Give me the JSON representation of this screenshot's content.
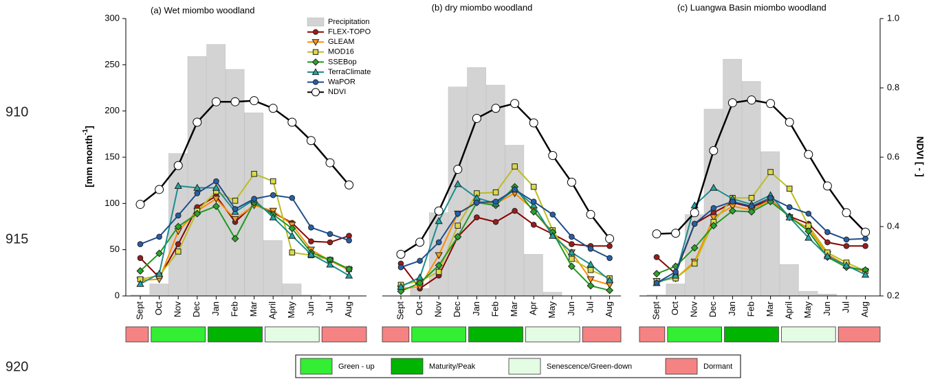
{
  "line_numbers": [
    910,
    915,
    920
  ],
  "phase_legend": [
    {
      "label": "Green - up",
      "color": "#33ee33"
    },
    {
      "label": "Maturity/Peak",
      "color": "#00b400"
    },
    {
      "label": "Senescence/Green-down",
      "color": "#e4fbe4"
    },
    {
      "label": "Dormant",
      "color": "#f58383"
    }
  ],
  "chart_data": [
    {
      "type": "combo",
      "title": "(a) Wet miombo woodland",
      "categories": [
        "Sept",
        "Oct",
        "Nov",
        "Dec",
        "Jan",
        "Feb",
        "Mar",
        "April",
        "May",
        "Jun",
        "Jul",
        "Aug"
      ],
      "ylim": [
        0,
        300
      ],
      "yticks": [
        0,
        50,
        100,
        150,
        200,
        250,
        300
      ],
      "ylabel_parts": [
        "[mm month",
        "-1",
        "]"
      ],
      "y2lim": [
        0.2,
        1.0
      ],
      "legend": "upper right",
      "series": [
        {
          "name": "Precipitation",
          "color": "#d3d3d3",
          "marker": "bar",
          "values": [
            1,
            13,
            154,
            259,
            272,
            245,
            198,
            60,
            13,
            1,
            0,
            0
          ]
        },
        {
          "name": "FLEX-TOPO",
          "color": "#8b0000",
          "marker_fill": "#9b1c1c",
          "marker": "circle",
          "values": [
            41,
            20,
            56,
            96,
            108,
            80,
            99,
            90,
            79,
            59,
            58,
            65
          ]
        },
        {
          "name": "GLEAM",
          "color": "#ff8c00",
          "marker_fill": "#ff9a1a",
          "marker": "triangle-down",
          "values": [
            17,
            18,
            70,
            92,
            105,
            83,
            98,
            92,
            77,
            50,
            38,
            28
          ]
        },
        {
          "name": "MOD16",
          "color": "#bcbc22",
          "marker_fill": "#dada4a",
          "marker": "square",
          "values": [
            18,
            22,
            48,
            92,
            113,
            103,
            132,
            124,
            47,
            44,
            39,
            29
          ]
        },
        {
          "name": "SSEBop",
          "color": "#1f9a1f",
          "marker_fill": "#2aa62a",
          "marker": "diamond",
          "values": [
            27,
            46,
            75,
            89,
            97,
            62,
            101,
            88,
            73,
            47,
            39,
            29
          ]
        },
        {
          "name": "TerraClimate",
          "color": "#1c8c8c",
          "marker_fill": "#22a5a5",
          "marker": "triangle-up",
          "values": [
            13,
            24,
            119,
            117,
            117,
            91,
            104,
            85,
            65,
            45,
            34,
            22
          ]
        },
        {
          "name": "WaPOR",
          "color": "#1f4e8c",
          "marker_fill": "#2660a8",
          "marker": "circle",
          "values": [
            56,
            64,
            87,
            111,
            124,
            94,
            105,
            109,
            106,
            74,
            67,
            60
          ]
        },
        {
          "name": "NDVI",
          "color": "#000000",
          "marker_fill": "#ffffff",
          "marker": "circle",
          "axis": "y2",
          "values": [
            0.464,
            0.507,
            0.576,
            0.701,
            0.76,
            0.76,
            0.763,
            0.741,
            0.701,
            0.648,
            0.584,
            0.52
          ]
        }
      ]
    },
    {
      "type": "combo",
      "title": "(b) dry miombo woodland",
      "categories": [
        "Sept",
        "Oct",
        "Nov",
        "Dec",
        "Jan",
        "Feb",
        "Mar",
        "Apr",
        "May",
        "Jun",
        "Jul",
        "Aug"
      ],
      "ylim": [
        0,
        300
      ],
      "y2lim": [
        0.2,
        1.0
      ],
      "series": [
        {
          "name": "Precipitation",
          "color": "#d3d3d3",
          "marker": "bar",
          "values": [
            0,
            8,
            90,
            226,
            247,
            228,
            163,
            45,
            4,
            0,
            0,
            0
          ]
        },
        {
          "name": "FLEX-TOPO",
          "color": "#8b0000",
          "marker_fill": "#9b1c1c",
          "marker": "circle",
          "values": [
            35,
            8,
            22,
            64,
            85,
            80,
            92,
            77,
            67,
            56,
            54,
            54
          ]
        },
        {
          "name": "GLEAM",
          "color": "#ff8c00",
          "marker_fill": "#ff9a1a",
          "marker": "triangle-down",
          "values": [
            8,
            10,
            44,
            89,
            102,
            100,
            111,
            93,
            66,
            47,
            18,
            12
          ]
        },
        {
          "name": "MOD16",
          "color": "#bcbc22",
          "marker_fill": "#dada4a",
          "marker": "square",
          "values": [
            12,
            16,
            26,
            76,
            111,
            112,
            140,
            118,
            71,
            40,
            28,
            19
          ]
        },
        {
          "name": "SSEBop",
          "color": "#1f9a1f",
          "marker_fill": "#2aa62a",
          "marker": "diamond",
          "values": [
            5,
            14,
            33,
            64,
            101,
            98,
            118,
            91,
            69,
            32,
            11,
            6
          ]
        },
        {
          "name": "TerraClimate",
          "color": "#1c8c8c",
          "marker_fill": "#22a5a5",
          "marker": "triangle-up",
          "values": [
            10,
            20,
            81,
            121,
            106,
            100,
            115,
            98,
            65,
            47,
            34,
            17
          ]
        },
        {
          "name": "WaPOR",
          "color": "#1f4e8c",
          "marker_fill": "#2660a8",
          "marker": "circle",
          "values": [
            31,
            38,
            58,
            89,
            101,
            102,
            115,
            102,
            88,
            64,
            51,
            41
          ]
        },
        {
          "name": "NDVI",
          "color": "#000000",
          "marker_fill": "#ffffff",
          "marker": "circle",
          "axis": "y2",
          "values": [
            0.32,
            0.355,
            0.445,
            0.565,
            0.712,
            0.741,
            0.755,
            0.699,
            0.605,
            0.528,
            0.435,
            0.365
          ]
        }
      ]
    },
    {
      "type": "combo",
      "title": "(c) Luangwa Basin miombo woodland",
      "categories": [
        "Sept",
        "Oct",
        "Nov",
        "Dec",
        "Jan",
        "Feb",
        "Mar",
        "April",
        "May",
        "Jun",
        "Jul",
        "Aug"
      ],
      "ylim": [
        0,
        300
      ],
      "y2lim": [
        0.2,
        1.0
      ],
      "y2ticks": [
        0.2,
        0.4,
        0.6,
        0.8,
        {
          "value": 1,
          "label": "1.0"
        }
      ],
      "y2label": "NDVI [ - ]",
      "series": [
        {
          "name": "Precipitation",
          "color": "#d3d3d3",
          "marker": "bar",
          "values": [
            1,
            13,
            88,
            202,
            256,
            232,
            156,
            34,
            5,
            2,
            0,
            0
          ]
        },
        {
          "name": "FLEX-TOPO",
          "color": "#8b0000",
          "marker_fill": "#9b1c1c",
          "marker": "circle",
          "values": [
            42,
            24,
            78,
            90,
            101,
            96,
            104,
            86,
            78,
            58,
            54,
            54
          ]
        },
        {
          "name": "GLEAM",
          "color": "#ff8c00",
          "marker_fill": "#ff9a1a",
          "marker": "triangle-down",
          "values": [
            16,
            19,
            37,
            85,
            97,
            93,
            104,
            85,
            73,
            45,
            33,
            26
          ]
        },
        {
          "name": "MOD16",
          "color": "#bcbc22",
          "marker_fill": "#dada4a",
          "marker": "square",
          "values": [
            16,
            19,
            35,
            80,
            106,
            106,
            134,
            116,
            76,
            47,
            36,
            27
          ]
        },
        {
          "name": "SSEBop",
          "color": "#1f9a1f",
          "marker_fill": "#2aa62a",
          "marker": "diamond",
          "values": [
            24,
            32,
            52,
            76,
            92,
            91,
            102,
            86,
            70,
            42,
            31,
            28
          ]
        },
        {
          "name": "TerraClimate",
          "color": "#1c8c8c",
          "marker_fill": "#22a5a5",
          "marker": "triangle-up",
          "values": [
            14,
            22,
            98,
            117,
            105,
            99,
            109,
            85,
            63,
            43,
            33,
            23
          ]
        },
        {
          "name": "WaPOR",
          "color": "#1f4e8c",
          "marker_fill": "#2660a8",
          "marker": "circle",
          "values": [
            14,
            26,
            78,
            95,
            102,
            97,
            106,
            96,
            89,
            69,
            61,
            62
          ]
        },
        {
          "name": "NDVI",
          "color": "#000000",
          "marker_fill": "#ffffff",
          "marker": "circle",
          "axis": "y2",
          "values": [
            0.379,
            0.381,
            0.44,
            0.619,
            0.757,
            0.765,
            0.755,
            0.701,
            0.608,
            0.517,
            0.44,
            0.384
          ]
        }
      ]
    }
  ]
}
